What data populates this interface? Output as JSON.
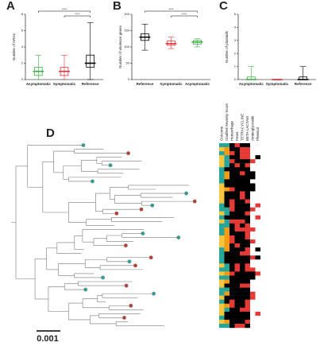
{
  "chart_data": [
    {
      "type": "box",
      "panel": "A",
      "ylabel": "Number of ARGs",
      "categories": [
        "Asymptomatic",
        "Symptomatic",
        "Reference"
      ],
      "boxes": [
        {
          "color": "#3cb043",
          "min": 0,
          "q1": 0.5,
          "median": 1,
          "q3": 1.5,
          "max": 3
        },
        {
          "color": "#e0333a",
          "min": 0,
          "q1": 0.5,
          "median": 1,
          "q3": 1.5,
          "max": 3
        },
        {
          "color": "#000000",
          "min": 0,
          "q1": 1.5,
          "median": 2,
          "q3": 3,
          "max": 7
        }
      ],
      "ylim": [
        0,
        8
      ],
      "yticks": [
        0,
        2,
        4,
        6,
        8
      ],
      "annotations": [
        "****",
        "****"
      ]
    },
    {
      "type": "box",
      "panel": "B",
      "ylabel": "Number of virulence genes",
      "categories": [
        "Reference",
        "Symptomatic",
        "Asymptomatic"
      ],
      "boxes": [
        {
          "color": "#000000",
          "min": 90,
          "q1": 120,
          "median": 130,
          "q3": 140,
          "max": 170
        },
        {
          "color": "#e0333a",
          "min": 95,
          "q1": 105,
          "median": 110,
          "q3": 118,
          "max": 130
        },
        {
          "color": "#3cb043",
          "min": 100,
          "q1": 108,
          "median": 115,
          "q3": 120,
          "max": 125
        }
      ],
      "ylim": [
        0,
        200
      ],
      "yticks": [
        0,
        50,
        100,
        150,
        200
      ],
      "annotations": [
        "****",
        "****"
      ]
    },
    {
      "type": "box",
      "panel": "C",
      "ylabel": "Number of plasmids",
      "categories": [
        "Asymptomatic",
        "Symptomatic",
        "Reference"
      ],
      "boxes": [
        {
          "color": "#3cb043",
          "min": 0,
          "q1": 0,
          "median": 0,
          "q3": 0.2,
          "max": 1
        },
        {
          "color": "#e0333a",
          "min": 0,
          "q1": 0,
          "median": 0,
          "q3": 0,
          "max": 0
        },
        {
          "color": "#000000",
          "min": 0,
          "q1": 0,
          "median": 0,
          "q3": 0.2,
          "max": 1
        }
      ],
      "ylim": [
        0,
        5
      ],
      "yticks": [
        0,
        1,
        2,
        3,
        4,
        5
      ],
      "annotations": []
    }
  ],
  "panel_d": {
    "label": "D",
    "scale_bar": "0.001",
    "columns": [
      "Outcome",
      "Clarified Severity Score",
      "Hemorrhage",
      "Fever",
      "TETRACYCLINE",
      "BETA-LACTAM",
      "Aminoglycoside",
      "Phenicol"
    ]
  }
}
